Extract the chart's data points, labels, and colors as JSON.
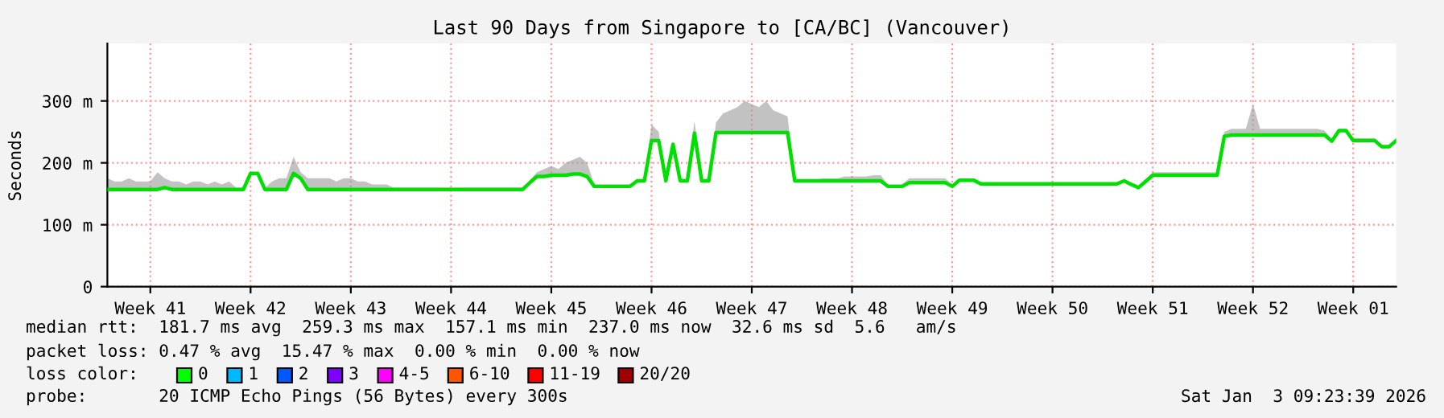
{
  "chart_data": {
    "type": "line",
    "title": "Last 90 Days from Singapore to [CA/BC] (Vancouver)",
    "ylabel": "Seconds",
    "categories": [
      null,
      null,
      null,
      null,
      null,
      null,
      "Week 41",
      null,
      null,
      null,
      null,
      null,
      null,
      null,
      null,
      null,
      null,
      null,
      null,
      null,
      "Week 42",
      null,
      null,
      null,
      null,
      null,
      null,
      null,
      null,
      null,
      null,
      null,
      null,
      null,
      "Week 43",
      null,
      null,
      null,
      null,
      null,
      null,
      null,
      null,
      null,
      null,
      null,
      null,
      null,
      "Week 44",
      null,
      null,
      null,
      null,
      null,
      null,
      null,
      null,
      null,
      null,
      null,
      null,
      null,
      "Week 45",
      null,
      null,
      null,
      null,
      null,
      null,
      null,
      null,
      null,
      null,
      null,
      null,
      null,
      "Week 46",
      null,
      null,
      null,
      null,
      null,
      null,
      null,
      null,
      null,
      null,
      null,
      null,
      null,
      "Week 47",
      null,
      null,
      null,
      null,
      null,
      null,
      null,
      null,
      null,
      null,
      null,
      null,
      null,
      "Week 48",
      null,
      null,
      null,
      null,
      null,
      null,
      null,
      null,
      null,
      null,
      null,
      null,
      null,
      "Week 49",
      null,
      null,
      null,
      null,
      null,
      null,
      null,
      null,
      null,
      null,
      null,
      null,
      null,
      "Week 50",
      null,
      null,
      null,
      null,
      null,
      null,
      null,
      null,
      null,
      null,
      null,
      null,
      null,
      "Week 51",
      null,
      null,
      null,
      null,
      null,
      null,
      null,
      null,
      null,
      null,
      null,
      null,
      null,
      "Week 52",
      null,
      null,
      null,
      null,
      null,
      null,
      null,
      null,
      null,
      null,
      null,
      null,
      null,
      "Week 01",
      null,
      null,
      null,
      null,
      null,
      null
    ],
    "series": [
      {
        "color": "#00e000",
        "line_style": "solid",
        "values": [
          157,
          157,
          157,
          157,
          157,
          157,
          157,
          157,
          160,
          157,
          157,
          157,
          157,
          157,
          157,
          157,
          157,
          157,
          157,
          157,
          183,
          183,
          157,
          157,
          157,
          157,
          183,
          175,
          157,
          157,
          157,
          157,
          157,
          157,
          157,
          157,
          157,
          157,
          157,
          157,
          157,
          157,
          157,
          157,
          157,
          157,
          157,
          157,
          157,
          157,
          157,
          157,
          157,
          157,
          157,
          157,
          157,
          157,
          157,
          168,
          178,
          178,
          180,
          180,
          180,
          182,
          182,
          178,
          162,
          162,
          162,
          162,
          162,
          162,
          171,
          171,
          236,
          236,
          171,
          230,
          171,
          171,
          248,
          171,
          171,
          249,
          249,
          249,
          249,
          249,
          249,
          249,
          249,
          249,
          249,
          249,
          171,
          171,
          171,
          171,
          171,
          171,
          171,
          171,
          171,
          171,
          171,
          171,
          171,
          162,
          162,
          162,
          168,
          168,
          168,
          168,
          168,
          168,
          162,
          172,
          172,
          172,
          166,
          166,
          166,
          166,
          166,
          166,
          166,
          166,
          166,
          166,
          166,
          166,
          166,
          166,
          166,
          166,
          166,
          166,
          166,
          166,
          171,
          165,
          160,
          170,
          180,
          180,
          180,
          180,
          180,
          180,
          180,
          180,
          180,
          180,
          243,
          245,
          245,
          245,
          245,
          245,
          245,
          245,
          245,
          245,
          245,
          245,
          245,
          245,
          245,
          235,
          252,
          252,
          236,
          236,
          236,
          236,
          226,
          226,
          236
        ],
        "lower": [
          157,
          157,
          157,
          157,
          157,
          157,
          157,
          157,
          160,
          157,
          157,
          157,
          157,
          157,
          157,
          157,
          157,
          157,
          157,
          157,
          183,
          183,
          157,
          157,
          157,
          157,
          183,
          175,
          157,
          157,
          157,
          157,
          157,
          157,
          157,
          157,
          157,
          157,
          157,
          157,
          157,
          157,
          157,
          157,
          157,
          157,
          157,
          157,
          157,
          157,
          157,
          157,
          157,
          157,
          157,
          157,
          157,
          157,
          157,
          168,
          178,
          178,
          180,
          180,
          180,
          182,
          182,
          178,
          162,
          162,
          162,
          162,
          162,
          162,
          171,
          171,
          236,
          236,
          171,
          230,
          171,
          171,
          248,
          171,
          171,
          249,
          249,
          249,
          249,
          249,
          249,
          249,
          249,
          249,
          249,
          249,
          171,
          171,
          171,
          171,
          171,
          171,
          171,
          171,
          171,
          171,
          171,
          171,
          171,
          162,
          162,
          162,
          168,
          168,
          168,
          168,
          168,
          168,
          162,
          172,
          172,
          172,
          166,
          166,
          166,
          166,
          166,
          166,
          166,
          166,
          166,
          166,
          166,
          166,
          166,
          166,
          166,
          166,
          166,
          166,
          166,
          166,
          171,
          165,
          160,
          170,
          180,
          180,
          180,
          180,
          180,
          180,
          180,
          180,
          180,
          180,
          243,
          245,
          245,
          245,
          245,
          245,
          245,
          245,
          245,
          245,
          245,
          245,
          245,
          245,
          245,
          235,
          252,
          252,
          236,
          236,
          236,
          236,
          226,
          226,
          236
        ],
        "upper": [
          175,
          170,
          170,
          175,
          170,
          170,
          170,
          185,
          175,
          170,
          170,
          165,
          170,
          170,
          165,
          170,
          165,
          170,
          160,
          160,
          185,
          185,
          160,
          170,
          175,
          175,
          210,
          185,
          175,
          175,
          175,
          175,
          170,
          175,
          175,
          170,
          170,
          165,
          165,
          165,
          160,
          160,
          160,
          160,
          160,
          160,
          160,
          160,
          160,
          160,
          160,
          160,
          160,
          160,
          160,
          160,
          160,
          160,
          160,
          172,
          185,
          190,
          195,
          190,
          200,
          205,
          210,
          200,
          165,
          165,
          165,
          165,
          165,
          165,
          173,
          173,
          262,
          250,
          173,
          232,
          173,
          173,
          268,
          173,
          173,
          265,
          280,
          285,
          290,
          300,
          295,
          290,
          300,
          285,
          280,
          275,
          173,
          173,
          173,
          173,
          175,
          175,
          175,
          178,
          178,
          178,
          178,
          180,
          180,
          165,
          165,
          165,
          175,
          175,
          175,
          175,
          175,
          175,
          165,
          175,
          175,
          175,
          168,
          168,
          168,
          168,
          168,
          168,
          168,
          168,
          168,
          168,
          168,
          168,
          168,
          168,
          168,
          168,
          168,
          168,
          168,
          168,
          173,
          168,
          163,
          173,
          185,
          185,
          185,
          185,
          185,
          185,
          185,
          185,
          185,
          185,
          250,
          255,
          255,
          255,
          295,
          255,
          255,
          255,
          255,
          255,
          255,
          255,
          255,
          255,
          252,
          238,
          255,
          255,
          240,
          240,
          240,
          240,
          228,
          228,
          238
        ]
      }
    ],
    "ylim": [
      0,
      393
    ],
    "yticks": [
      0,
      {
        "value": 100,
        "label": "100 m"
      },
      {
        "value": 200,
        "label": "200 m"
      },
      {
        "value": 300,
        "label": "300 m"
      }
    ],
    "grid": true,
    "annotations": [
      "median rtt:  181.7 ms avg  259.3 ms max  157.1 ms min  237.0 ms now  32.6 ms sd  5.6   am/s",
      "packet loss: 0.47 % avg  15.47 % max  0.00 % min  0.00 % now",
      "loss color:",
      "0",
      "1",
      "2",
      "3",
      "4-5",
      "6-10",
      "11-19",
      "20/20",
      "probe:       20 ICMP Echo Pings (56 Bytes) every 300s",
      "Sat Jan  3 09:23:39 2026"
    ]
  }
}
